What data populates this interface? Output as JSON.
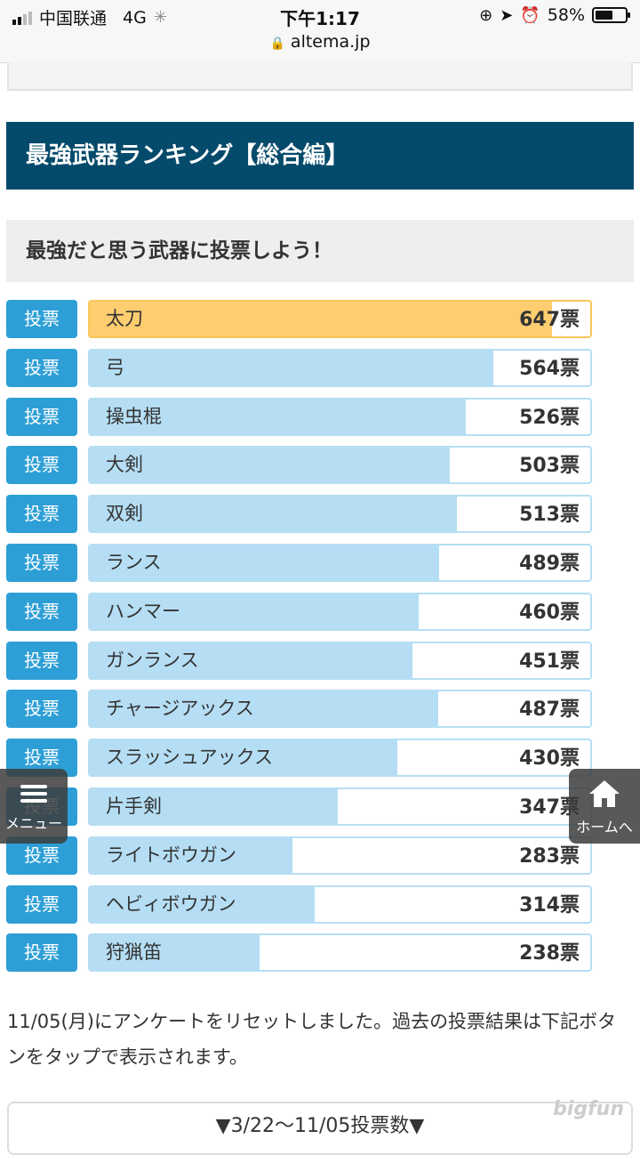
{
  "status_bar": {
    "carrier": "中国联通",
    "network": "4G",
    "time": "下午1:17",
    "battery": "58%",
    "battery_level": 0.58,
    "url": "altema.jp"
  },
  "section": {
    "title": "最強武器ランキング【総合編】",
    "subtitle": "最強だと思う武器に投票しよう！"
  },
  "vote_label": "投票",
  "max_votes": 700,
  "rankings": [
    {
      "name": "太刀",
      "votes": 647,
      "label": "647票",
      "highlight": true
    },
    {
      "name": "弓",
      "votes": 564,
      "label": "564票"
    },
    {
      "name": "操虫棍",
      "votes": 526,
      "label": "526票"
    },
    {
      "name": "大剣",
      "votes": 503,
      "label": "503票"
    },
    {
      "name": "双剣",
      "votes": 513,
      "label": "513票"
    },
    {
      "name": "ランス",
      "votes": 489,
      "label": "489票"
    },
    {
      "name": "ハンマー",
      "votes": 460,
      "label": "460票"
    },
    {
      "name": "ガンランス",
      "votes": 451,
      "label": "451票"
    },
    {
      "name": "チャージアックス",
      "votes": 487,
      "label": "487票"
    },
    {
      "name": "スラッシュアックス",
      "votes": 430,
      "label": "430票"
    },
    {
      "name": "片手剣",
      "votes": 347,
      "label": "347票"
    },
    {
      "name": "ライトボウガン",
      "votes": 283,
      "label": "283票"
    },
    {
      "name": "ヘビィボウガン",
      "votes": 314,
      "label": "314票"
    },
    {
      "name": "狩猟笛",
      "votes": 238,
      "label": "238票"
    }
  ],
  "note": "11/05(月)にアンケートをリセットしました。過去の投票結果は下記ボタンをタップで表示されます。",
  "past_results_button": "▼3/22〜11/05投票数▼",
  "floating": {
    "menu_label": "メニュー",
    "home_label": "ホームへ"
  },
  "watermark": "bigfun"
}
